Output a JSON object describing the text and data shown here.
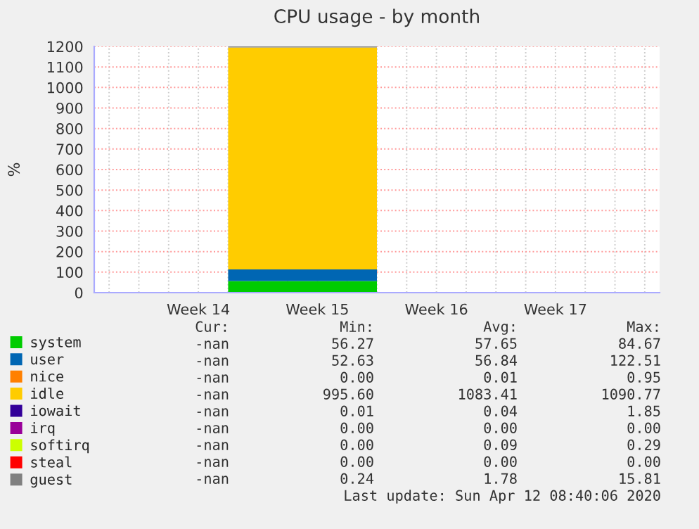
{
  "chart_data": {
    "type": "area",
    "stacked": true,
    "title": "CPU usage - by month",
    "ylabel": "%",
    "categories": [
      null,
      null,
      null,
      "Week 14",
      null,
      null,
      null,
      "Week 15",
      null,
      null,
      null,
      "Week 16",
      null,
      null,
      null,
      "Week 17",
      null,
      null,
      null
    ],
    "ylim": [
      0,
      1200
    ],
    "yticks": [
      0,
      100,
      200,
      300,
      400,
      500,
      600,
      700,
      800,
      900,
      1000,
      1100,
      1200
    ],
    "grid": true,
    "legend": "bottom",
    "series": [
      {
        "name": "system",
        "color": "#00cc00",
        "values": [
          null,
          null,
          null,
          null,
          57,
          57,
          57,
          57,
          57,
          57,
          null,
          null,
          null,
          null,
          null,
          null,
          null,
          null,
          null
        ]
      },
      {
        "name": "user",
        "color": "#0066b3",
        "values": [
          null,
          null,
          null,
          null,
          56,
          56,
          56,
          56,
          56,
          56,
          null,
          null,
          null,
          null,
          null,
          null,
          null,
          null,
          null
        ]
      },
      {
        "name": "nice",
        "color": "#ff8000",
        "values": [
          null,
          null,
          null,
          null,
          null,
          null,
          null,
          null,
          null,
          null,
          null,
          null,
          null,
          null,
          null,
          null,
          null,
          null,
          null
        ]
      },
      {
        "name": "idle",
        "color": "#ffcc00",
        "values": [
          null,
          null,
          null,
          null,
          1082,
          1082,
          1082,
          1082,
          1082,
          1082,
          null,
          null,
          null,
          null,
          null,
          null,
          null,
          null,
          null
        ]
      },
      {
        "name": "iowait",
        "color": "#330099",
        "values": [
          null,
          null,
          null,
          null,
          null,
          null,
          null,
          null,
          null,
          null,
          null,
          null,
          null,
          null,
          null,
          null,
          null,
          null,
          null
        ]
      },
      {
        "name": "irq",
        "color": "#990099",
        "values": [
          null,
          null,
          null,
          null,
          null,
          null,
          null,
          null,
          null,
          null,
          null,
          null,
          null,
          null,
          null,
          null,
          null,
          null,
          null
        ]
      },
      {
        "name": "softirq",
        "color": "#ccff00",
        "values": [
          null,
          null,
          null,
          null,
          null,
          null,
          null,
          null,
          null,
          null,
          null,
          null,
          null,
          null,
          null,
          null,
          null,
          null,
          null
        ]
      },
      {
        "name": "steal",
        "color": "#ff0000",
        "values": [
          null,
          null,
          null,
          null,
          null,
          null,
          null,
          null,
          null,
          null,
          null,
          null,
          null,
          null,
          null,
          null,
          null,
          null,
          null
        ]
      },
      {
        "name": "guest",
        "color": "#808080",
        "values": [
          null,
          null,
          null,
          null,
          5,
          5,
          5,
          5,
          5,
          5,
          null,
          null,
          null,
          null,
          null,
          null,
          null,
          null,
          null
        ]
      }
    ],
    "annotations": [
      "Cur:",
      "Min:",
      "Avg:",
      "Max:",
      "-nan",
      "56.27",
      "57.65",
      "84.67",
      "-nan",
      "52.63",
      "56.84",
      "122.51",
      "-nan",
      "0.00",
      "0.01",
      "0.95",
      "-nan",
      "995.60",
      "1083.41",
      "1090.77",
      "-nan",
      "0.01",
      "0.04",
      "1.85",
      "-nan",
      "0.00",
      "0.00",
      "0.00",
      "-nan",
      "0.00",
      "0.09",
      "0.29",
      "-nan",
      "0.00",
      "0.00",
      "0.00",
      "-nan",
      "0.24",
      "1.78",
      "15.81",
      "Last update: Sun Apr 12 08:40:06 2020"
    ]
  }
}
